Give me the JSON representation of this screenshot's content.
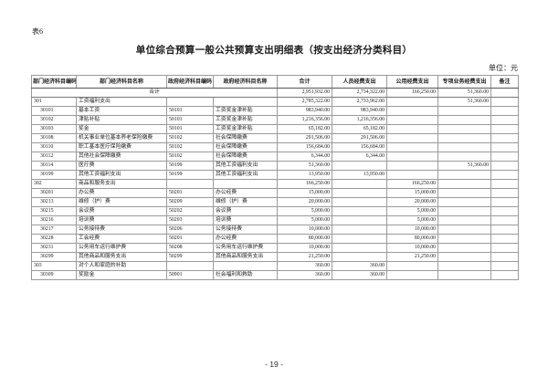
{
  "page": {
    "table_label": "表6",
    "title": "单位综合预算一般公共预算支出明细表（按支出经济分类科目）",
    "unit_label": "单位：元",
    "page_number": "- 19 -"
  },
  "table": {
    "headers": [
      "部门经济科目编码",
      "部门经济科目名称",
      "政府经济科目编码",
      "政府经济科目名称",
      "合计",
      "人员经费支出",
      "公用经费支出",
      "专项业务经费支出",
      "备注"
    ],
    "total_row": {
      "label": "合计",
      "total": "2,951,932.00",
      "personnel": "2,734,322.00",
      "public": "166,250.00",
      "special": "51,360.00",
      "note": ""
    },
    "rows": [
      {
        "level": 1,
        "dept_code": "301",
        "dept_name": "工资福利支出",
        "gov_code": "",
        "gov_name": "",
        "total": "2,785,322.00",
        "personnel": "2,733,962.00",
        "public": "",
        "special": "51,360.00",
        "note": ""
      },
      {
        "level": 2,
        "dept_code": "30101",
        "dept_name": "基本工资",
        "gov_code": "50101",
        "gov_name": "工资奖金津补贴",
        "total": "983,940.00",
        "personnel": "983,940.00",
        "public": "",
        "special": "",
        "note": ""
      },
      {
        "level": 2,
        "dept_code": "30102",
        "dept_name": "津贴补贴",
        "gov_code": "50101",
        "gov_name": "工资奖金津补贴",
        "total": "1,216,356.00",
        "personnel": "1,216,356.00",
        "public": "",
        "special": "",
        "note": ""
      },
      {
        "level": 2,
        "dept_code": "30103",
        "dept_name": "奖金",
        "gov_code": "50101",
        "gov_name": "工资奖金津补贴",
        "total": "65,182.00",
        "personnel": "65,182.00",
        "public": "",
        "special": "",
        "note": ""
      },
      {
        "level": 2,
        "dept_code": "30108",
        "dept_name": "机关事业单位基本养老保险缴费",
        "gov_code": "50102",
        "gov_name": "社会保障缴费",
        "total": "291,506.00",
        "personnel": "291,506.00",
        "public": "",
        "special": "",
        "note": ""
      },
      {
        "level": 2,
        "dept_code": "30110",
        "dept_name": "职工基本医疗保险缴费",
        "gov_code": "50102",
        "gov_name": "社会保障缴费",
        "total": "156,684.00",
        "personnel": "156,684.00",
        "public": "",
        "special": "",
        "note": ""
      },
      {
        "level": 2,
        "dept_code": "30112",
        "dept_name": "其他社会保障缴费",
        "gov_code": "50102",
        "gov_name": "社会保障缴费",
        "total": "6,344.00",
        "personnel": "6,344.00",
        "public": "",
        "special": "",
        "note": ""
      },
      {
        "level": 2,
        "dept_code": "30114",
        "dept_name": "医疗费",
        "gov_code": "50199",
        "gov_name": "其他工资福利支出",
        "total": "51,360.00",
        "personnel": "",
        "public": "",
        "special": "51,360.00",
        "note": ""
      },
      {
        "level": 2,
        "dept_code": "30199",
        "dept_name": "其他工资福利支出",
        "gov_code": "50199",
        "gov_name": "其他工资福利支出",
        "total": "13,950.00",
        "personnel": "13,950.00",
        "public": "",
        "special": "",
        "note": ""
      },
      {
        "level": 1,
        "dept_code": "302",
        "dept_name": "商品和服务支出",
        "gov_code": "",
        "gov_name": "",
        "total": "166,250.00",
        "personnel": "",
        "public": "166,250.00",
        "special": "",
        "note": ""
      },
      {
        "level": 2,
        "dept_code": "30201",
        "dept_name": "办公费",
        "gov_code": "50201",
        "gov_name": "办公经费",
        "total": "15,000.00",
        "personnel": "",
        "public": "15,000.00",
        "special": "",
        "note": ""
      },
      {
        "level": 2,
        "dept_code": "30213",
        "dept_name": "维修（护）费",
        "gov_code": "50209",
        "gov_name": "维修（护）费",
        "total": "20,000.00",
        "personnel": "",
        "public": "20,000.00",
        "special": "",
        "note": ""
      },
      {
        "level": 2,
        "dept_code": "30215",
        "dept_name": "会议费",
        "gov_code": "50202",
        "gov_name": "会议费",
        "total": "5,000.00",
        "personnel": "",
        "public": "5,000.00",
        "special": "",
        "note": ""
      },
      {
        "level": 2,
        "dept_code": "30216",
        "dept_name": "培训费",
        "gov_code": "50203",
        "gov_name": "培训费",
        "total": "5,000.00",
        "personnel": "",
        "public": "5,000.00",
        "special": "",
        "note": ""
      },
      {
        "level": 2,
        "dept_code": "30217",
        "dept_name": "公务接待费",
        "gov_code": "50206",
        "gov_name": "公务接待费",
        "total": "10,000.00",
        "personnel": "",
        "public": "10,000.00",
        "special": "",
        "note": ""
      },
      {
        "level": 2,
        "dept_code": "30228",
        "dept_name": "工会经费",
        "gov_code": "50201",
        "gov_name": "办公经费",
        "total": "80,000.00",
        "personnel": "",
        "public": "80,000.00",
        "special": "",
        "note": ""
      },
      {
        "level": 2,
        "dept_code": "30231",
        "dept_name": "公务用车运行维护费",
        "gov_code": "50208",
        "gov_name": "公务用车运行维护费",
        "total": "10,000.00",
        "personnel": "",
        "public": "10,000.00",
        "special": "",
        "note": ""
      },
      {
        "level": 2,
        "dept_code": "30299",
        "dept_name": "其他商品和服务支出",
        "gov_code": "50299",
        "gov_name": "其他商品和服务支出",
        "total": "21,250.00",
        "personnel": "",
        "public": "21,250.00",
        "special": "",
        "note": ""
      },
      {
        "level": 1,
        "dept_code": "303",
        "dept_name": "对个人和家庭的补助",
        "gov_code": "",
        "gov_name": "",
        "total": "360.00",
        "personnel": "360.00",
        "public": "",
        "special": "",
        "note": ""
      },
      {
        "level": 2,
        "dept_code": "30309",
        "dept_name": "奖励金",
        "gov_code": "50901",
        "gov_name": "社会福利和救助",
        "total": "360.00",
        "personnel": "360.00",
        "public": "",
        "special": "",
        "note": ""
      }
    ]
  }
}
